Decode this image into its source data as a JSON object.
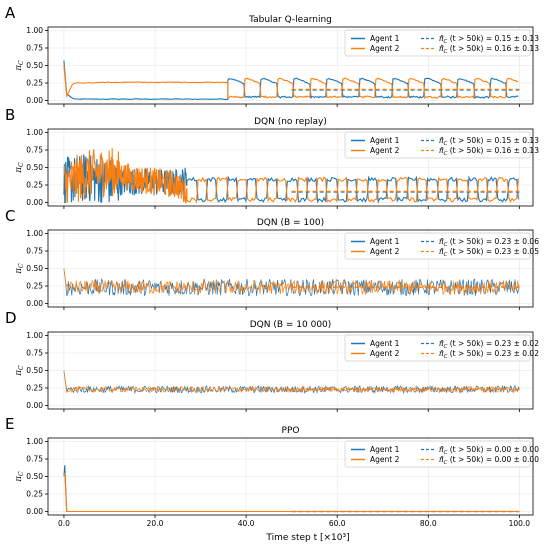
{
  "figure": {
    "xlabel": "Time step t [×10³]",
    "legend_labels": {
      "agent1": "Agent 1",
      "agent2": "Agent 2"
    },
    "colors": {
      "agent1": "#1f77b4",
      "agent2": "#ff7f0e"
    }
  },
  "chart_data": [
    {
      "type": "line",
      "letter": "A",
      "title": "Tabular Q-learning",
      "ylabel": "π_C",
      "xlim": [
        0,
        100
      ],
      "ylim": [
        0,
        1.05
      ],
      "xticks": [
        "0.0",
        "20.0",
        "40.0",
        "60.0",
        "80.0",
        "100.0"
      ],
      "yticks": [
        "0.00",
        "0.25",
        "0.50",
        "0.75",
        "1.00"
      ],
      "regime": "alternating",
      "series": [
        {
          "name": "Agent 1",
          "x": [
            0,
            0.5,
            2,
            10,
            20,
            30,
            36,
            38,
            40,
            44,
            48,
            52,
            56,
            60,
            64,
            68,
            72,
            76,
            80,
            84,
            88,
            92,
            96,
            100
          ],
          "y": [
            0.57,
            0.1,
            0.02,
            0.02,
            0.02,
            0.02,
            0.02,
            0.33,
            0.05,
            0.3,
            0.05,
            0.3,
            0.05,
            0.3,
            0.05,
            0.32,
            0.05,
            0.32,
            0.05,
            0.34,
            0.05,
            0.34,
            0.3,
            0.25
          ]
        },
        {
          "name": "Agent 2",
          "x": [
            0,
            0.5,
            2,
            10,
            20,
            30,
            36,
            38,
            40,
            44,
            48,
            52,
            56,
            60,
            64,
            68,
            72,
            76,
            80,
            84,
            88,
            92,
            96,
            100
          ],
          "y": [
            0.5,
            0.05,
            0.25,
            0.26,
            0.26,
            0.26,
            0.26,
            0.02,
            0.33,
            0.03,
            0.33,
            0.03,
            0.33,
            0.03,
            0.33,
            0.03,
            0.32,
            0.03,
            0.32,
            0.03,
            0.32,
            0.03,
            0.05,
            0.02
          ]
        }
      ],
      "means": [
        {
          "label": "π̄_C (t > 50k)  = 0.15 ± 0.13",
          "value": 0.15
        },
        {
          "label": "π̄_C (t > 50k)  = 0.16 ± 0.13",
          "value": 0.16
        }
      ]
    },
    {
      "type": "line",
      "letter": "B",
      "title": "DQN (no replay)",
      "ylabel": "π_C",
      "xlim": [
        0,
        100
      ],
      "ylim": [
        0,
        1.05
      ],
      "xticks": [
        "0.0",
        "20.0",
        "40.0",
        "60.0",
        "80.0",
        "100.0"
      ],
      "yticks": [
        "0.00",
        "0.25",
        "0.50",
        "0.75",
        "1.00"
      ],
      "regime": "noisy-then-alternating",
      "series": [
        {
          "name": "Agent 1",
          "x": [
            0,
            5,
            10,
            15,
            20,
            25,
            28,
            32,
            36,
            40,
            50,
            60,
            70,
            80,
            90,
            100
          ],
          "y": [
            0.3,
            0.35,
            0.3,
            0.3,
            0.28,
            0.28,
            0.35,
            0.05,
            0.34,
            0.04,
            0.33,
            0.04,
            0.33,
            0.04,
            0.33,
            0.05
          ]
        },
        {
          "name": "Agent 2",
          "x": [
            0,
            5,
            10,
            15,
            20,
            25,
            28,
            32,
            36,
            40,
            50,
            60,
            70,
            80,
            90,
            100
          ],
          "y": [
            0.25,
            0.4,
            0.45,
            0.35,
            0.3,
            0.25,
            0.05,
            0.34,
            0.03,
            0.34,
            0.03,
            0.32,
            0.03,
            0.3,
            0.03,
            0.27
          ]
        }
      ],
      "means": [
        {
          "label": "π̄_C (t > 50k)  = 0.15 ± 0.13",
          "value": 0.15
        },
        {
          "label": "π̄_C (t > 50k)  = 0.16 ± 0.13",
          "value": 0.16
        }
      ]
    },
    {
      "type": "line",
      "letter": "C",
      "title": "DQN (B = 100)",
      "ylabel": "π_C",
      "xlim": [
        0,
        100
      ],
      "ylim": [
        0,
        1.05
      ],
      "xticks": [
        "0.0",
        "20.0",
        "40.0",
        "60.0",
        "80.0",
        "100.0"
      ],
      "yticks": [
        "0.00",
        "0.25",
        "0.50",
        "0.75",
        "1.00"
      ],
      "regime": "noise",
      "series": [
        {
          "name": "Agent 1",
          "x": [
            0,
            100
          ],
          "y": [
            0.23,
            0.23
          ],
          "spread": 0.12
        },
        {
          "name": "Agent 2",
          "x": [
            0,
            100
          ],
          "y": [
            0.23,
            0.23
          ],
          "spread": 0.1
        }
      ],
      "means": [
        {
          "label": "π̄_C (t > 50k)  = 0.23 ± 0.06",
          "value": 0.23
        },
        {
          "label": "π̄_C (t > 50k)  = 0.23 ± 0.05",
          "value": 0.23
        }
      ]
    },
    {
      "type": "line",
      "letter": "D",
      "title": "DQN (B = 10 000)",
      "ylabel": "π_C",
      "xlim": [
        0,
        100
      ],
      "ylim": [
        0,
        1.05
      ],
      "xticks": [
        "0.0",
        "20.0",
        "40.0",
        "60.0",
        "80.0",
        "100.0"
      ],
      "yticks": [
        "0.00",
        "0.25",
        "0.50",
        "0.75",
        "1.00"
      ],
      "regime": "noise",
      "series": [
        {
          "name": "Agent 1",
          "x": [
            0,
            100
          ],
          "y": [
            0.23,
            0.23
          ],
          "spread": 0.05
        },
        {
          "name": "Agent 2",
          "x": [
            0,
            100
          ],
          "y": [
            0.23,
            0.23
          ],
          "spread": 0.04
        }
      ],
      "means": [
        {
          "label": "π̄_C (t > 50k)  = 0.23 ± 0.02",
          "value": 0.23
        },
        {
          "label": "π̄_C (t > 50k)  = 0.23 ± 0.02",
          "value": 0.23
        }
      ]
    },
    {
      "type": "line",
      "letter": "E",
      "title": "PPO",
      "ylabel": "π_C",
      "xlim": [
        0,
        100
      ],
      "ylim": [
        0,
        1.05
      ],
      "xticks": [
        "0.0",
        "20.0",
        "40.0",
        "60.0",
        "80.0",
        "100.0"
      ],
      "yticks": [
        "0.00",
        "0.25",
        "0.50",
        "0.75",
        "1.00"
      ],
      "regime": "spike-then-zero",
      "series": [
        {
          "name": "Agent 1",
          "x": [
            0,
            0.2,
            0.6,
            100
          ],
          "y": [
            0.5,
            0.66,
            0.0,
            0.0
          ]
        },
        {
          "name": "Agent 2",
          "x": [
            0,
            0.2,
            0.6,
            100
          ],
          "y": [
            0.5,
            0.55,
            0.0,
            0.0
          ]
        }
      ],
      "means": [
        {
          "label": "π̄_C (t > 50k)  = 0.00 ± 0.00",
          "value": 0.0
        },
        {
          "label": "π̄_C (t > 50k)  = 0.00 ± 0.00",
          "value": 0.0
        }
      ]
    }
  ]
}
